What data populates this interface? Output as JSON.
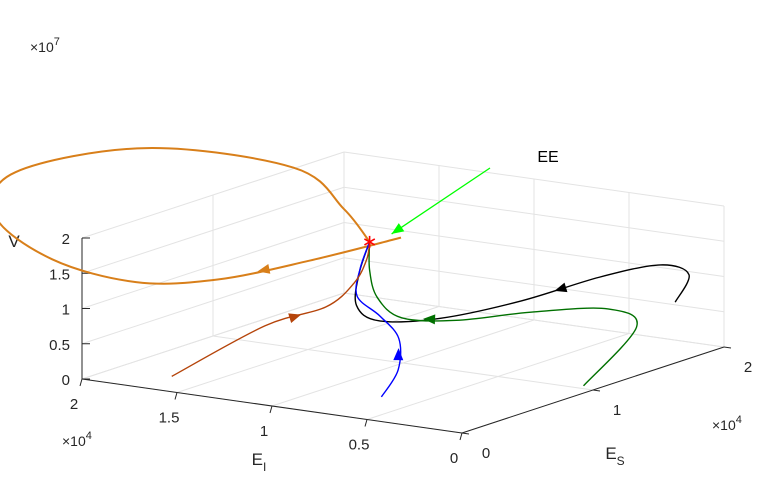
{
  "chart_data": {
    "type": "line3d",
    "title": "",
    "axes": {
      "x": {
        "label": "E",
        "subscript": "S",
        "multiplier": "×10",
        "exponent": "4",
        "range": [
          0,
          2
        ],
        "ticks": [
          "0",
          "1",
          "2"
        ]
      },
      "y": {
        "label": "E",
        "subscript": "I",
        "multiplier": "×10",
        "exponent": "4",
        "range": [
          0,
          2
        ],
        "ticks": [
          "0",
          "0.5",
          "1",
          "1.5",
          "2"
        ]
      },
      "z": {
        "label": "V",
        "multiplier": "×10",
        "exponent": "7",
        "range": [
          0,
          2
        ],
        "ticks": [
          "0",
          "0.5",
          "1",
          "1.5",
          "2"
        ]
      }
    },
    "grid": true,
    "equilibrium": {
      "label": "EE",
      "x": 0.6,
      "y": 0.9,
      "z": 1.0,
      "marker": "red-star",
      "arrow_color": "#00ff00"
    },
    "series": [
      {
        "color": "#d87f1a",
        "points": [
          [
            2.0,
            1.7,
            0.45
          ],
          [
            1.3,
            1.7,
            0.5
          ],
          [
            0.6,
            1.7,
            0.58
          ],
          [
            0.05,
            1.75,
            0.72
          ],
          [
            -0.3,
            1.95,
            0.95
          ],
          [
            -0.3,
            2.25,
            1.2
          ],
          [
            0.0,
            2.35,
            1.4
          ],
          [
            0.35,
            1.9,
            1.55
          ],
          [
            0.6,
            1.3,
            1.45
          ],
          [
            0.62,
            1.05,
            1.2
          ],
          [
            0.6,
            0.9,
            1.0
          ]
        ],
        "arrow_at": 1
      },
      {
        "color": "#000000",
        "points": [
          [
            1.7,
            0.05,
            0.4
          ],
          [
            1.95,
            0.15,
            0.5
          ],
          [
            1.95,
            0.3,
            0.54
          ],
          [
            1.7,
            0.45,
            0.5
          ],
          [
            1.25,
            0.55,
            0.45
          ],
          [
            0.85,
            0.7,
            0.42
          ],
          [
            0.6,
            0.85,
            0.45
          ],
          [
            0.5,
            0.9,
            0.58
          ],
          [
            0.52,
            0.9,
            0.8
          ],
          [
            0.6,
            0.9,
            1.0
          ]
        ],
        "arrow_at": 3
      },
      {
        "color": "#007000",
        "points": [
          [
            1.0,
            0.05,
            0.02
          ],
          [
            1.55,
            0.15,
            0.25
          ],
          [
            1.55,
            0.3,
            0.35
          ],
          [
            1.25,
            0.5,
            0.38
          ],
          [
            0.9,
            0.65,
            0.4
          ],
          [
            0.7,
            0.8,
            0.45
          ],
          [
            0.63,
            0.88,
            0.6
          ],
          [
            0.6,
            0.9,
            0.8
          ],
          [
            0.6,
            0.9,
            1.0
          ]
        ],
        "arrow_at": 4
      },
      {
        "color": "#0000ff",
        "points": [
          [
            0.4,
            0.7,
            0.0
          ],
          [
            0.6,
            0.75,
            0.12
          ],
          [
            0.75,
            0.85,
            0.28
          ],
          [
            0.75,
            0.95,
            0.42
          ],
          [
            0.65,
            1.0,
            0.58
          ],
          [
            0.6,
            0.95,
            0.8
          ],
          [
            0.6,
            0.9,
            1.0
          ]
        ],
        "arrow_at": 1
      },
      {
        "color": "#b5440a",
        "points": [
          [
            0.25,
            1.7,
            0.0
          ],
          [
            0.6,
            1.45,
            0.3
          ],
          [
            0.7,
            1.2,
            0.45
          ],
          [
            0.7,
            1.05,
            0.65
          ],
          [
            0.65,
            0.95,
            0.85
          ],
          [
            0.6,
            0.9,
            1.0
          ]
        ],
        "arrow_at": 1
      }
    ]
  }
}
